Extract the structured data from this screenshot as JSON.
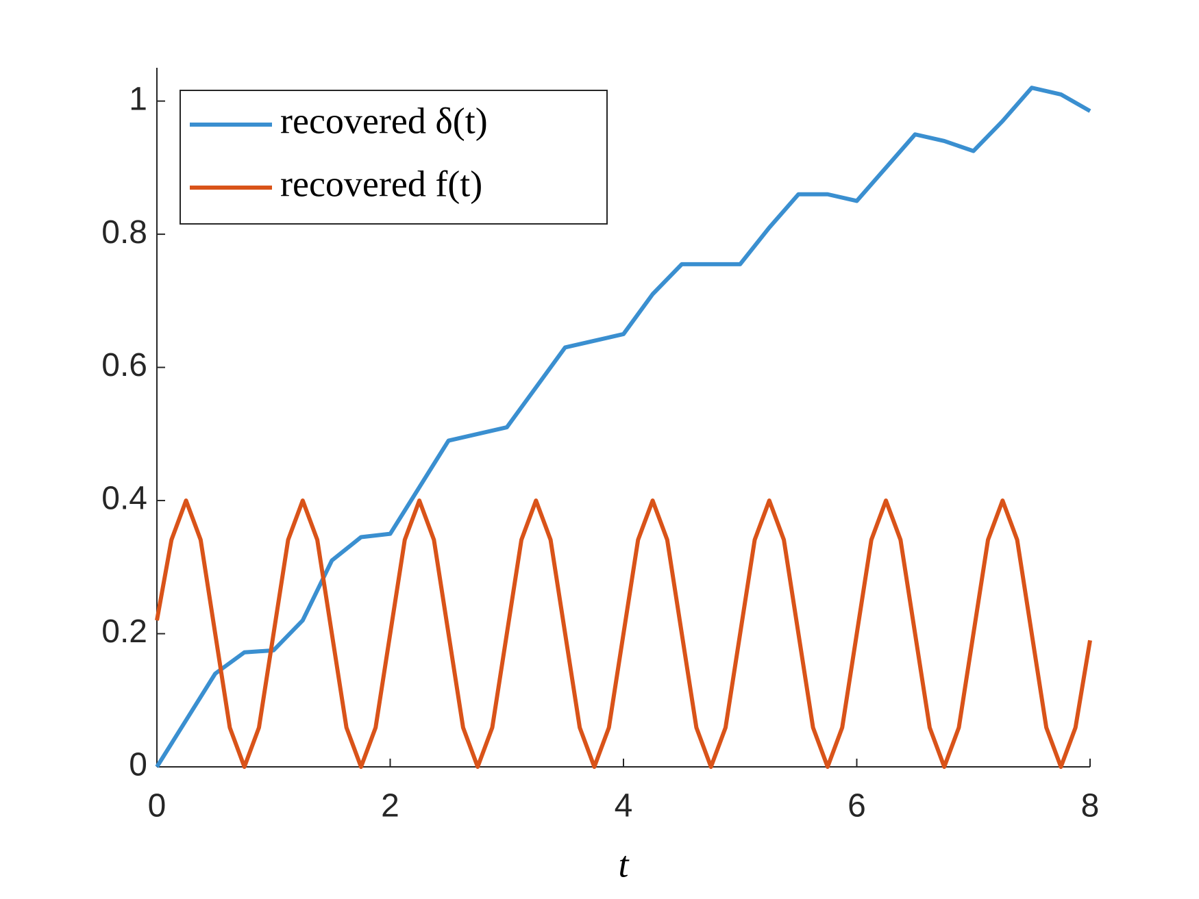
{
  "chart_data": {
    "type": "line",
    "xlabel": "t",
    "xlim": [
      0,
      8
    ],
    "xticks": [
      0,
      2,
      4,
      6,
      8
    ],
    "ylim": [
      0,
      1.05
    ],
    "yticks": [
      0,
      0.2,
      0.4,
      0.6,
      0.8,
      1
    ],
    "legend": "upper left",
    "series": [
      {
        "name": "recovered δ(t)",
        "color": "#3a8fd0",
        "x": [
          0,
          0.25,
          0.5,
          0.75,
          1,
          1.25,
          1.5,
          1.75,
          2,
          2.25,
          2.5,
          2.75,
          3,
          3.25,
          3.5,
          3.75,
          4,
          4.25,
          4.5,
          4.75,
          5,
          5.25,
          5.5,
          5.75,
          6,
          6.25,
          6.5,
          6.75,
          7,
          7.25,
          7.5,
          7.75,
          8
        ],
        "values": [
          0,
          0.07,
          0.14,
          0.172,
          0.175,
          0.22,
          0.31,
          0.345,
          0.35,
          0.42,
          0.49,
          0.5,
          0.51,
          0.57,
          0.63,
          0.64,
          0.65,
          0.71,
          0.755,
          0.755,
          0.755,
          0.81,
          0.86,
          0.86,
          0.85,
          0.9,
          0.95,
          0.94,
          0.925,
          0.97,
          1.02,
          1.01,
          0.985
        ]
      },
      {
        "name": "recovered f(t)",
        "color": "#d95319",
        "x": [
          0,
          0.125,
          0.25,
          0.375,
          0.5,
          0.625,
          0.75,
          0.875,
          1,
          1.125,
          1.25,
          1.375,
          1.5,
          1.625,
          1.75,
          1.875,
          2,
          2.125,
          2.25,
          2.375,
          2.5,
          2.625,
          2.75,
          2.875,
          3,
          3.125,
          3.25,
          3.375,
          3.5,
          3.625,
          3.75,
          3.875,
          4,
          4.125,
          4.25,
          4.375,
          4.5,
          4.625,
          4.75,
          4.875,
          5,
          5.125,
          5.25,
          5.375,
          5.5,
          5.625,
          5.75,
          5.875,
          6,
          6.125,
          6.25,
          6.375,
          6.5,
          6.625,
          6.75,
          6.875,
          7,
          7.125,
          7.25,
          7.375,
          7.5,
          7.625,
          7.75,
          7.875,
          8
        ],
        "values": [
          0.22,
          0.341,
          0.4,
          0.341,
          0.2,
          0.059,
          0,
          0.059,
          0.2,
          0.341,
          0.4,
          0.341,
          0.2,
          0.059,
          0,
          0.059,
          0.2,
          0.341,
          0.4,
          0.341,
          0.2,
          0.059,
          0,
          0.059,
          0.2,
          0.341,
          0.4,
          0.341,
          0.2,
          0.059,
          0,
          0.059,
          0.2,
          0.341,
          0.4,
          0.341,
          0.2,
          0.059,
          0,
          0.059,
          0.2,
          0.341,
          0.4,
          0.341,
          0.2,
          0.059,
          0,
          0.059,
          0.2,
          0.341,
          0.4,
          0.341,
          0.2,
          0.059,
          0,
          0.059,
          0.2,
          0.341,
          0.4,
          0.341,
          0.2,
          0.059,
          0,
          0.059,
          0.19
        ]
      }
    ]
  }
}
